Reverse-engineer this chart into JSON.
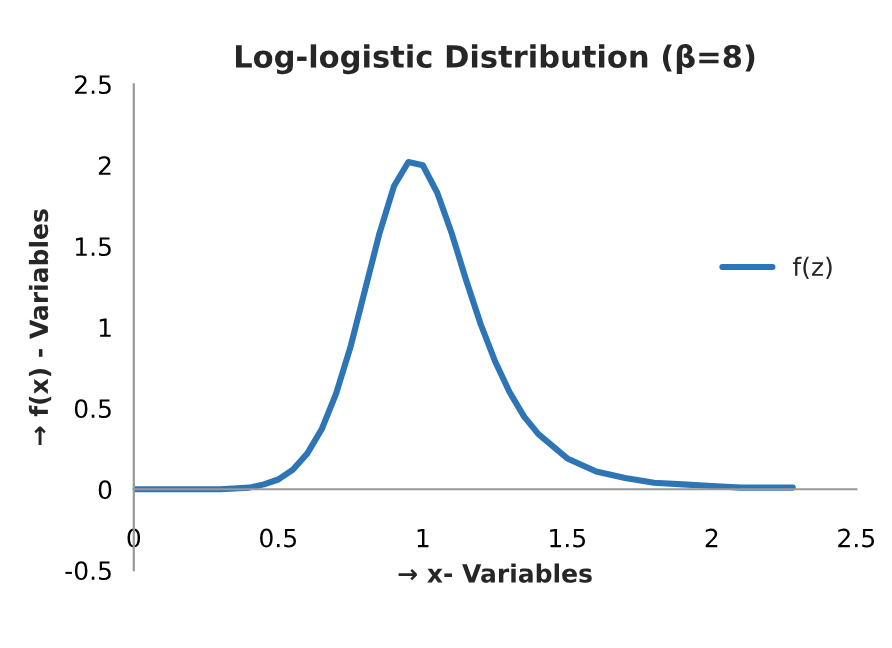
{
  "chart_data": {
    "type": "line",
    "title": "Log-logistic Distribution (β=8)",
    "xlabel": "→ x- Variables",
    "ylabel": "→ f(x) - Variables",
    "x": [
      0,
      0.1,
      0.2,
      0.3,
      0.4,
      0.45,
      0.5,
      0.55,
      0.6,
      0.65,
      0.7,
      0.75,
      0.8,
      0.85,
      0.9,
      0.95,
      1.0,
      1.05,
      1.1,
      1.15,
      1.2,
      1.25,
      1.3,
      1.35,
      1.4,
      1.5,
      1.6,
      1.7,
      1.8,
      1.9,
      2.0,
      2.1,
      2.28
    ],
    "series": [
      {
        "name": "f(z)",
        "color": "#2e75b6",
        "values": [
          0,
          0,
          0,
          0,
          0.01,
          0.03,
          0.06,
          0.12,
          0.22,
          0.37,
          0.59,
          0.88,
          1.23,
          1.58,
          1.87,
          2.02,
          2.0,
          1.83,
          1.58,
          1.29,
          1.02,
          0.79,
          0.6,
          0.45,
          0.34,
          0.19,
          0.11,
          0.07,
          0.04,
          0.03,
          0.02,
          0.01,
          0.01
        ]
      }
    ],
    "xlim": [
      0,
      2.5
    ],
    "xticks": [
      0,
      0.5,
      1,
      1.5,
      2,
      2.5
    ],
    "ylim": [
      -0.5,
      2.5
    ],
    "yticks": [
      -0.5,
      0,
      0.5,
      1,
      1.5,
      2,
      2.5
    ],
    "grid": false,
    "legend": "right",
    "marker": "none",
    "line_style": "solid"
  }
}
